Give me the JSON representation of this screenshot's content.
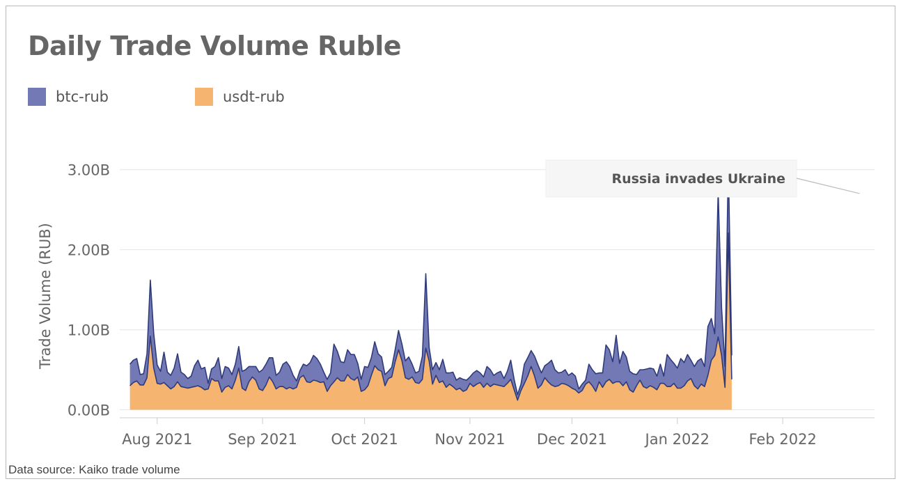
{
  "chart_data": {
    "type": "area",
    "stacked": true,
    "title": "Daily Trade Volume Ruble",
    "ylabel": "Trade Volume (RUB)",
    "xlabel": "",
    "x_range": [
      "2021-07-21",
      "2022-02-28"
    ],
    "ylim": [
      -0.1,
      3.25
    ],
    "y_ticks": [
      0.0,
      1.0,
      2.0,
      3.0
    ],
    "y_tick_labels": [
      "0.00B",
      "1.00B",
      "2.00B",
      "3.00B"
    ],
    "x_ticks": [
      "2021-08-01",
      "2021-09-01",
      "2021-10-01",
      "2021-11-01",
      "2021-12-01",
      "2022-01-01",
      "2022-02-01"
    ],
    "x_tick_labels": [
      "Aug 2021",
      "Sep 2021",
      "Oct 2021",
      "Nov 2021",
      "Dec 2021",
      "Jan 2022",
      "Feb 2022"
    ],
    "grid": "horizontal",
    "legend_position": "top-left",
    "units": "billion RUB",
    "start_date": "2021-07-24",
    "series": [
      {
        "name": "btc-rub",
        "color": "#7279b5",
        "line_color": "#2e3a7a",
        "values": [
          0.27,
          0.28,
          0.28,
          0.13,
          0.14,
          0.3,
          0.7,
          0.43,
          0.23,
          0.16,
          0.38,
          0.17,
          0.17,
          0.23,
          0.35,
          0.18,
          0.16,
          0.12,
          0.14,
          0.26,
          0.32,
          0.23,
          0.28,
          0.07,
          0.12,
          0.18,
          0.29,
          0.17,
          0.26,
          0.22,
          0.18,
          0.2,
          0.27,
          0.21,
          0.26,
          0.19,
          0.13,
          0.17,
          0.21,
          0.26,
          0.26,
          0.24,
          0.3,
          0.17,
          0.18,
          0.28,
          0.34,
          0.26,
          0.17,
          0.08,
          0.09,
          0.14,
          0.2,
          0.25,
          0.31,
          0.28,
          0.23,
          0.12,
          0.15,
          0.16,
          0.47,
          0.33,
          0.24,
          0.23,
          0.31,
          0.3,
          0.32,
          0.17,
          0.15,
          0.29,
          0.23,
          0.22,
          0.3,
          0.2,
          0.18,
          0.14,
          0.09,
          0.12,
          0.15,
          0.24,
          0.21,
          0.21,
          0.28,
          0.16,
          0.12,
          0.15,
          0.29,
          0.93,
          0.17,
          0.18,
          0.16,
          0.16,
          0.27,
          0.18,
          0.14,
          0.18,
          0.12,
          0.13,
          0.15,
          0.12,
          0.08,
          0.17,
          0.17,
          0.12,
          0.13,
          0.21,
          0.21,
          0.11,
          0.15,
          0.18,
          0.1,
          0.15,
          0.24,
          0.13,
          0.07,
          0.08,
          0.24,
          0.23,
          0.2,
          0.25,
          0.29,
          0.15,
          0.15,
          0.23,
          0.31,
          0.21,
          0.16,
          0.14,
          0.18,
          0.13,
          0.19,
          0.17,
          0.05,
          0.08,
          0.05,
          0.22,
          0.2,
          0.22,
          0.11,
          0.18,
          0.46,
          0.37,
          0.27,
          0.58,
          0.23,
          0.43,
          0.31,
          0.23,
          0.23,
          0.14,
          0.13,
          0.21,
          0.24,
          0.22,
          0.23,
          0.17,
          0.24,
          0.09,
          0.4,
          0.34,
          0.25,
          0.25,
          0.37,
          0.29,
          0.33,
          0.23,
          0.24,
          0.35,
          0.32,
          0.25,
          0.61,
          0.52,
          0.27,
          1.82,
          0.6,
          0.26,
          0.9,
          0.3
        ]
      },
      {
        "name": "usdt-rub",
        "color": "#f5b571",
        "line_color": "#e39a4a",
        "values": [
          0.3,
          0.34,
          0.36,
          0.31,
          0.31,
          0.4,
          0.92,
          0.52,
          0.33,
          0.32,
          0.34,
          0.3,
          0.26,
          0.29,
          0.35,
          0.29,
          0.28,
          0.27,
          0.28,
          0.29,
          0.3,
          0.28,
          0.25,
          0.26,
          0.39,
          0.36,
          0.36,
          0.22,
          0.28,
          0.3,
          0.26,
          0.37,
          0.52,
          0.27,
          0.24,
          0.35,
          0.41,
          0.37,
          0.26,
          0.24,
          0.31,
          0.41,
          0.35,
          0.26,
          0.29,
          0.29,
          0.26,
          0.28,
          0.26,
          0.28,
          0.4,
          0.43,
          0.35,
          0.34,
          0.37,
          0.36,
          0.34,
          0.35,
          0.23,
          0.3,
          0.35,
          0.4,
          0.36,
          0.36,
          0.44,
          0.39,
          0.37,
          0.41,
          0.23,
          0.25,
          0.3,
          0.43,
          0.55,
          0.5,
          0.48,
          0.3,
          0.39,
          0.41,
          0.6,
          0.75,
          0.61,
          0.4,
          0.38,
          0.41,
          0.34,
          0.33,
          0.38,
          0.77,
          0.61,
          0.32,
          0.43,
          0.34,
          0.36,
          0.28,
          0.32,
          0.29,
          0.25,
          0.27,
          0.23,
          0.25,
          0.33,
          0.29,
          0.32,
          0.34,
          0.28,
          0.33,
          0.29,
          0.32,
          0.31,
          0.3,
          0.29,
          0.33,
          0.38,
          0.25,
          0.12,
          0.24,
          0.33,
          0.42,
          0.54,
          0.42,
          0.27,
          0.31,
          0.4,
          0.35,
          0.31,
          0.29,
          0.3,
          0.33,
          0.32,
          0.3,
          0.27,
          0.25,
          0.21,
          0.24,
          0.32,
          0.35,
          0.3,
          0.23,
          0.35,
          0.28,
          0.35,
          0.38,
          0.33,
          0.35,
          0.35,
          0.3,
          0.35,
          0.25,
          0.22,
          0.3,
          0.37,
          0.29,
          0.27,
          0.3,
          0.28,
          0.25,
          0.33,
          0.33,
          0.29,
          0.29,
          0.33,
          0.27,
          0.27,
          0.3,
          0.36,
          0.39,
          0.3,
          0.26,
          0.32,
          0.29,
          0.43,
          0.62,
          0.68,
          0.91,
          0.68,
          0.28,
          2.21,
          0.38
        ]
      }
    ],
    "annotations": [
      {
        "text": "Russia invades Ukraine",
        "x": "2022-02-24",
        "y": 2.72
      }
    ]
  },
  "source_note": "Data source: Kaiko trade volume"
}
